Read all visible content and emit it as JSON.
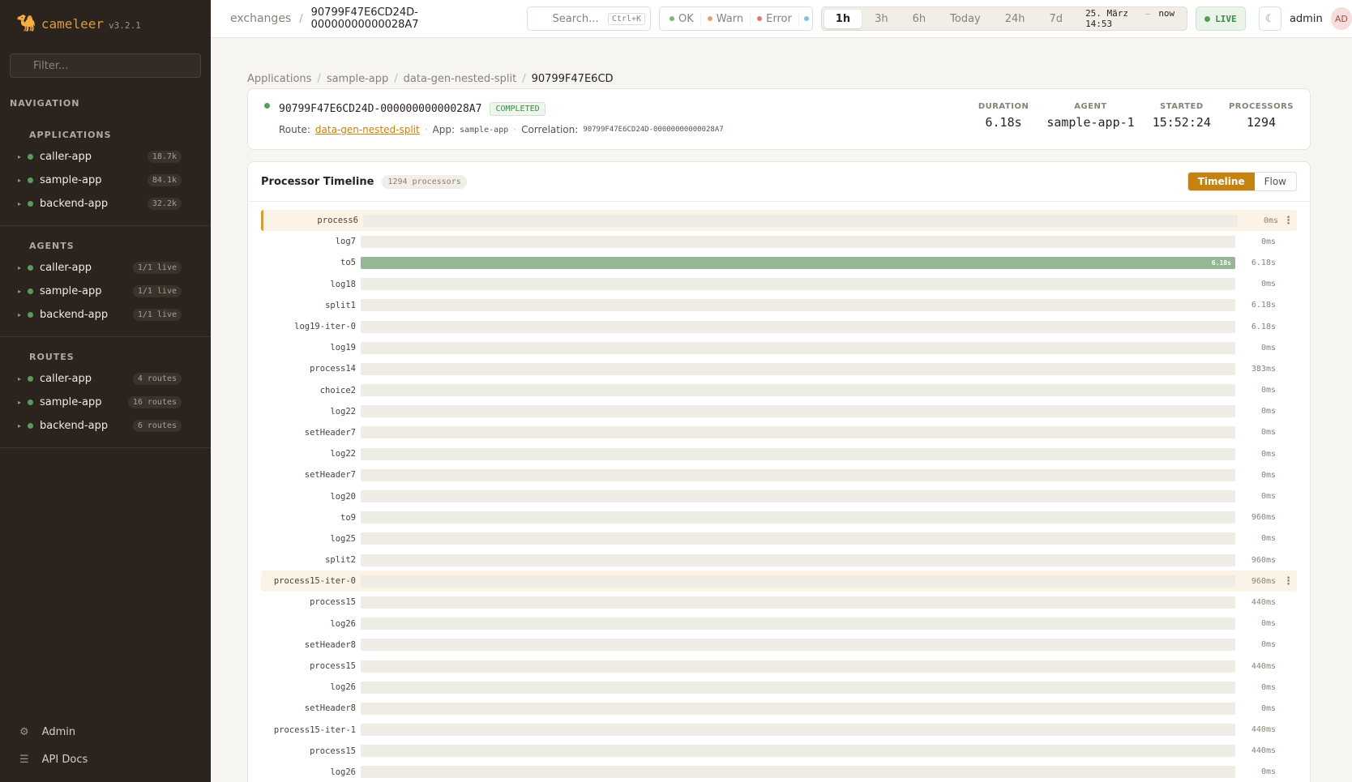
{
  "sidebar": {
    "brand": "cameleer",
    "version": "v3.2.1",
    "filter": "Filter...",
    "nav_title": "NAVIGATION",
    "sections": [
      {
        "title": "APPLICATIONS",
        "items": [
          {
            "name": "caller-app",
            "badge": "18.7k"
          },
          {
            "name": "sample-app",
            "badge": "84.1k"
          },
          {
            "name": "backend-app",
            "badge": "32.2k"
          }
        ]
      },
      {
        "title": "AGENTS",
        "items": [
          {
            "name": "caller-app",
            "badge": "1/1 live"
          },
          {
            "name": "sample-app",
            "badge": "1/1 live"
          },
          {
            "name": "backend-app",
            "badge": "1/1 live"
          }
        ]
      },
      {
        "title": "ROUTES",
        "items": [
          {
            "name": "caller-app",
            "badge": "4 routes"
          },
          {
            "name": "sample-app",
            "badge": "16 routes"
          },
          {
            "name": "backend-app",
            "badge": "6 routes"
          }
        ]
      }
    ],
    "footer": [
      "Admin",
      "API Docs"
    ]
  },
  "header": {
    "root": "exchanges",
    "exchange_id": "90799F47E6CD24D-00000000000028A7",
    "search": "Search...",
    "shortcut": "Ctrl+K",
    "filters": [
      "OK",
      "Warn",
      "Error"
    ],
    "ranges": [
      "1h",
      "3h",
      "6h",
      "Today",
      "24h",
      "7d"
    ],
    "time_from": "25. März 14:53",
    "time_sep": "—",
    "time_to": "now",
    "live": "LIVE",
    "user": "admin",
    "avatar": "AD"
  },
  "breadcrumb": [
    "Applications",
    "sample-app",
    "data-gen-nested-split",
    "90799F47E6CD"
  ],
  "exchange": {
    "id": "90799F47E6CD24D-00000000000028A7",
    "status": "COMPLETED",
    "route_label": "Route:",
    "route": "data-gen-nested-split",
    "app_label": "App:",
    "app": "sample-app",
    "correlation_label": "Correlation:",
    "correlation": "90799F47E6CD24D-00000000000028A7",
    "stats": [
      {
        "label": "DURATION",
        "value": "6.18s"
      },
      {
        "label": "AGENT",
        "value": "sample-app-1"
      },
      {
        "label": "STARTED",
        "value": "15:52:24"
      },
      {
        "label": "PROCESSORS",
        "value": "1294"
      }
    ]
  },
  "timeline": {
    "title": "Processor Timeline",
    "count": "1294 processors",
    "tabs": [
      "Timeline",
      "Flow"
    ],
    "rows": [
      {
        "name": "process6",
        "duration": "0ms",
        "selected": true
      },
      {
        "name": "log7",
        "duration": "0ms"
      },
      {
        "name": "to5",
        "duration": "6.18s",
        "bar_label": "6.18s"
      },
      {
        "name": "log18",
        "duration": "0ms"
      },
      {
        "name": "split1",
        "duration": "6.18s"
      },
      {
        "name": "log19-iter-0",
        "duration": "6.18s"
      },
      {
        "name": "log19",
        "duration": "0ms"
      },
      {
        "name": "process14",
        "duration": "383ms"
      },
      {
        "name": "choice2",
        "duration": "0ms"
      },
      {
        "name": "log22",
        "duration": "0ms"
      },
      {
        "name": "setHeader7",
        "duration": "0ms"
      },
      {
        "name": "log22",
        "duration": "0ms"
      },
      {
        "name": "setHeader7",
        "duration": "0ms"
      },
      {
        "name": "log20",
        "duration": "0ms"
      },
      {
        "name": "to9",
        "duration": "960ms"
      },
      {
        "name": "log25",
        "duration": "0ms"
      },
      {
        "name": "split2",
        "duration": "960ms"
      },
      {
        "name": "process15-iter-0",
        "duration": "960ms",
        "selected": true
      },
      {
        "name": "process15",
        "duration": "440ms"
      },
      {
        "name": "log26",
        "duration": "0ms"
      },
      {
        "name": "setHeader8",
        "duration": "0ms"
      },
      {
        "name": "process15",
        "duration": "440ms"
      },
      {
        "name": "log26",
        "duration": "0ms"
      },
      {
        "name": "setHeader8",
        "duration": "0ms"
      },
      {
        "name": "process15-iter-1",
        "duration": "440ms"
      },
      {
        "name": "process15",
        "duration": "440ms"
      },
      {
        "name": "log26",
        "duration": "0ms"
      }
    ]
  }
}
